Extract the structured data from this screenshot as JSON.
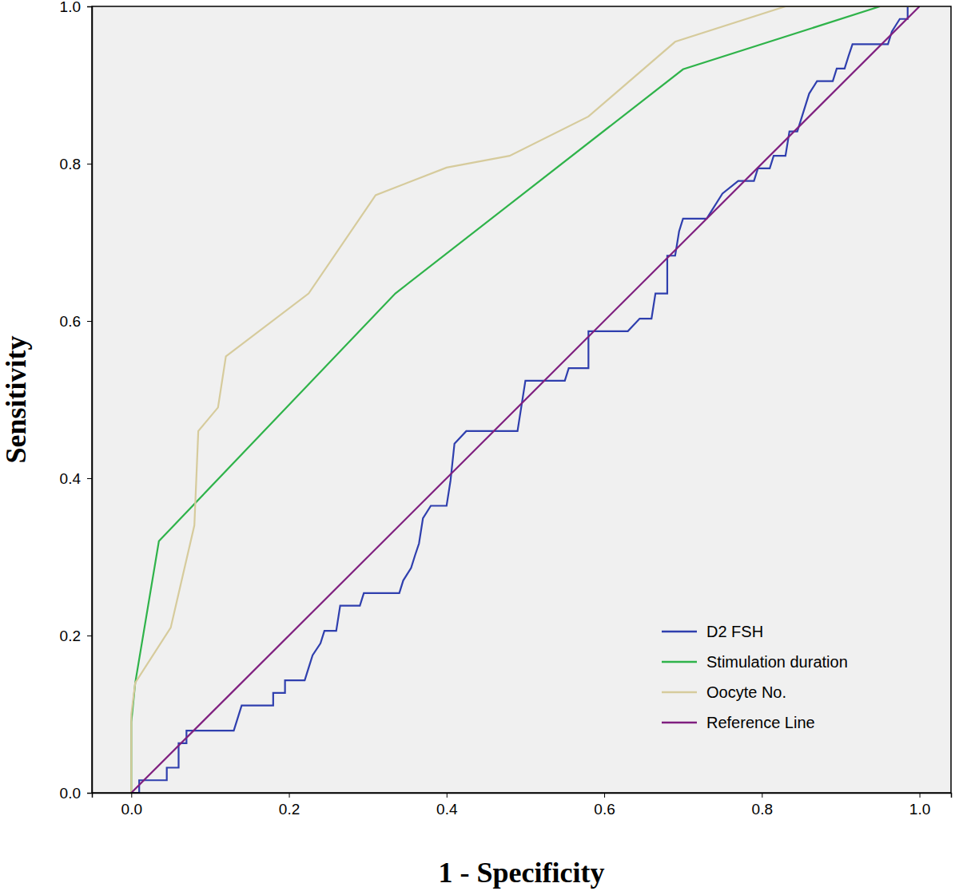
{
  "chart_data": {
    "type": "line",
    "x_label": "1 - Specificity",
    "y_label": "Sensitivity",
    "xlim": [
      -0.05,
      1.04
    ],
    "ylim": [
      0,
      1
    ],
    "xticks": [
      {
        "value": 0,
        "label": "0.0"
      },
      {
        "value": 0.2,
        "label": "0.2"
      },
      {
        "value": 0.4,
        "label": "0.4"
      },
      {
        "value": 0.6,
        "label": "0.6"
      },
      {
        "value": 0.8,
        "label": "0.8"
      },
      {
        "value": 1,
        "label": "1.0"
      }
    ],
    "yticks": [
      {
        "value": 0,
        "label": "0.0"
      },
      {
        "value": 0.2,
        "label": "0.2"
      },
      {
        "value": 0.4,
        "label": "0.4"
      },
      {
        "value": 0.6,
        "label": "0.6"
      },
      {
        "value": 0.8,
        "label": "0.8"
      },
      {
        "value": 1,
        "label": "1.0"
      }
    ],
    "grid": false,
    "legend": "lower right",
    "series": [
      {
        "name": "D2 FSH",
        "color": "#2f3fae",
        "x": [
          0,
          0.01,
          0.01,
          0.045,
          0.045,
          0.06,
          0.06,
          0.07,
          0.07,
          0.13,
          0.14,
          0.18,
          0.18,
          0.195,
          0.195,
          0.22,
          0.225,
          0.23,
          0.24,
          0.245,
          0.26,
          0.265,
          0.29,
          0.295,
          0.34,
          0.345,
          0.355,
          0.36,
          0.365,
          0.37,
          0.38,
          0.4,
          0.405,
          0.41,
          0.425,
          0.49,
          0.5,
          0.55,
          0.555,
          0.58,
          0.58,
          0.63,
          0.645,
          0.66,
          0.665,
          0.68,
          0.68,
          0.69,
          0.695,
          0.7,
          0.73,
          0.74,
          0.75,
          0.77,
          0.79,
          0.795,
          0.81,
          0.815,
          0.83,
          0.835,
          0.845,
          0.86,
          0.87,
          0.89,
          0.895,
          0.905,
          0.91,
          0.915,
          0.96,
          0.965,
          0.975,
          0.985,
          0.985,
          1
        ],
        "values": [
          0,
          0,
          0.016,
          0.016,
          0.032,
          0.032,
          0.063,
          0.063,
          0.079,
          0.079,
          0.111,
          0.111,
          0.127,
          0.127,
          0.143,
          0.143,
          0.159,
          0.175,
          0.19,
          0.206,
          0.206,
          0.238,
          0.238,
          0.254,
          0.254,
          0.27,
          0.286,
          0.302,
          0.317,
          0.349,
          0.365,
          0.365,
          0.397,
          0.444,
          0.46,
          0.46,
          0.524,
          0.524,
          0.54,
          0.54,
          0.587,
          0.587,
          0.603,
          0.603,
          0.635,
          0.635,
          0.683,
          0.683,
          0.714,
          0.73,
          0.73,
          0.746,
          0.762,
          0.778,
          0.778,
          0.794,
          0.794,
          0.81,
          0.81,
          0.841,
          0.841,
          0.889,
          0.905,
          0.905,
          0.921,
          0.921,
          0.937,
          0.952,
          0.952,
          0.968,
          0.984,
          0.984,
          1,
          1
        ]
      },
      {
        "name": "Stimulation duration",
        "color": "#2fb34a",
        "x": [
          0,
          0,
          0.005,
          0.035,
          0.335,
          0.7,
          0.95,
          1
        ],
        "values": [
          0,
          0.09,
          0.14,
          0.32,
          0.635,
          0.92,
          1,
          1
        ]
      },
      {
        "name": "Oocyte No.",
        "color": "#d6cb9c",
        "x": [
          0,
          0,
          0.005,
          0.05,
          0.08,
          0.085,
          0.11,
          0.12,
          0.225,
          0.31,
          0.4,
          0.48,
          0.58,
          0.69,
          0.83,
          1
        ],
        "values": [
          0,
          0.1,
          0.14,
          0.21,
          0.34,
          0.46,
          0.49,
          0.555,
          0.635,
          0.76,
          0.795,
          0.81,
          0.86,
          0.955,
          1,
          1
        ]
      },
      {
        "name": "Reference Line",
        "color": "#7f1f7f",
        "x": [
          0,
          1
        ],
        "values": [
          0,
          1
        ]
      }
    ]
  }
}
